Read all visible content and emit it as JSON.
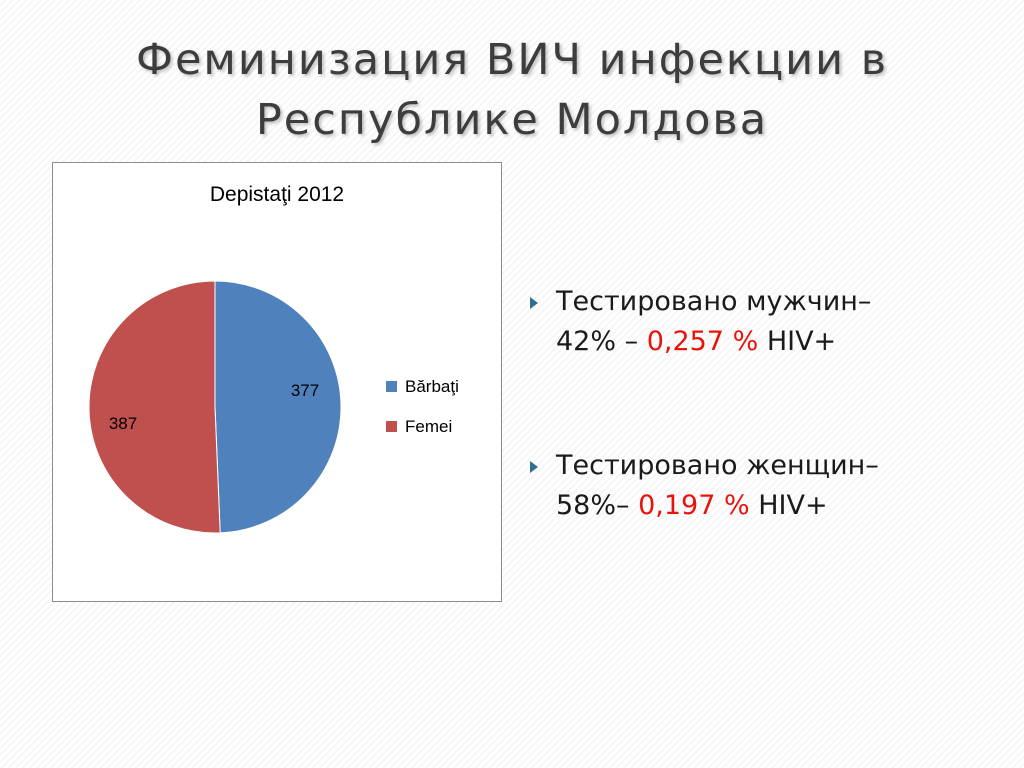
{
  "slide": {
    "title": "Феминизация ВИЧ инфекции в Республике Молдова"
  },
  "chart_data": {
    "type": "pie",
    "title": "Depistaţi 2012",
    "categories": [
      "Bărbaţi",
      "Femei"
    ],
    "values": [
      377,
      387
    ],
    "colors": [
      "#4f81bd",
      "#c0504d"
    ],
    "data_labels": [
      "377",
      "387"
    ],
    "legend_position": "right"
  },
  "bullets": [
    {
      "line1": "Тестировано мужчин–",
      "line2_prefix": "42% – ",
      "highlight": "0,257 %",
      "suffix": " HIV+"
    },
    {
      "line1": "Тестировано женщин–",
      "line2_prefix": "58%– ",
      "highlight": "0,197 %",
      "suffix": " HIV+"
    }
  ],
  "colors": {
    "accent": "#e8140c",
    "title": "#3d3d3d",
    "bullet_marker": "#2f6f8f"
  }
}
